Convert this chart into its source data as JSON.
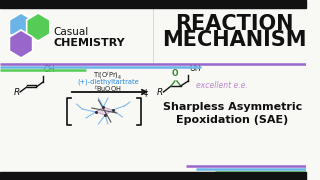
{
  "bg_color": "#f8f8f5",
  "title_text1": "REACTION",
  "title_text2": "MECHANISM",
  "title_color": "#111111",
  "logo_hex1_color": "#6ab4e8",
  "logo_hex2_color": "#55cc55",
  "logo_hex3_color": "#9966cc",
  "logo_text1": "Casual",
  "logo_text2": "CHEMISTRY",
  "reagents_line1": "Ti(O$^i$Pr)$_4$",
  "reagents_line2": "(+)-diethyltartrate",
  "reagents_line3": "$^t$BuOOH",
  "reagents_color1": "#222222",
  "reagents_color2": "#2288dd",
  "ee_text": "excellent e.e.",
  "ee_color": "#bb88cc",
  "bottom_text1": "Sharpless Asymmetric",
  "bottom_text2": "Epoxidation (SAE)",
  "bottom_color": "#111111",
  "divider_colors": [
    "#9966cc",
    "#6ab4e8",
    "#55cc55"
  ],
  "divider_colors_bot": [
    "#9966cc",
    "#6ab4e8",
    "#55cc55"
  ],
  "black_bar_color": "#111111"
}
